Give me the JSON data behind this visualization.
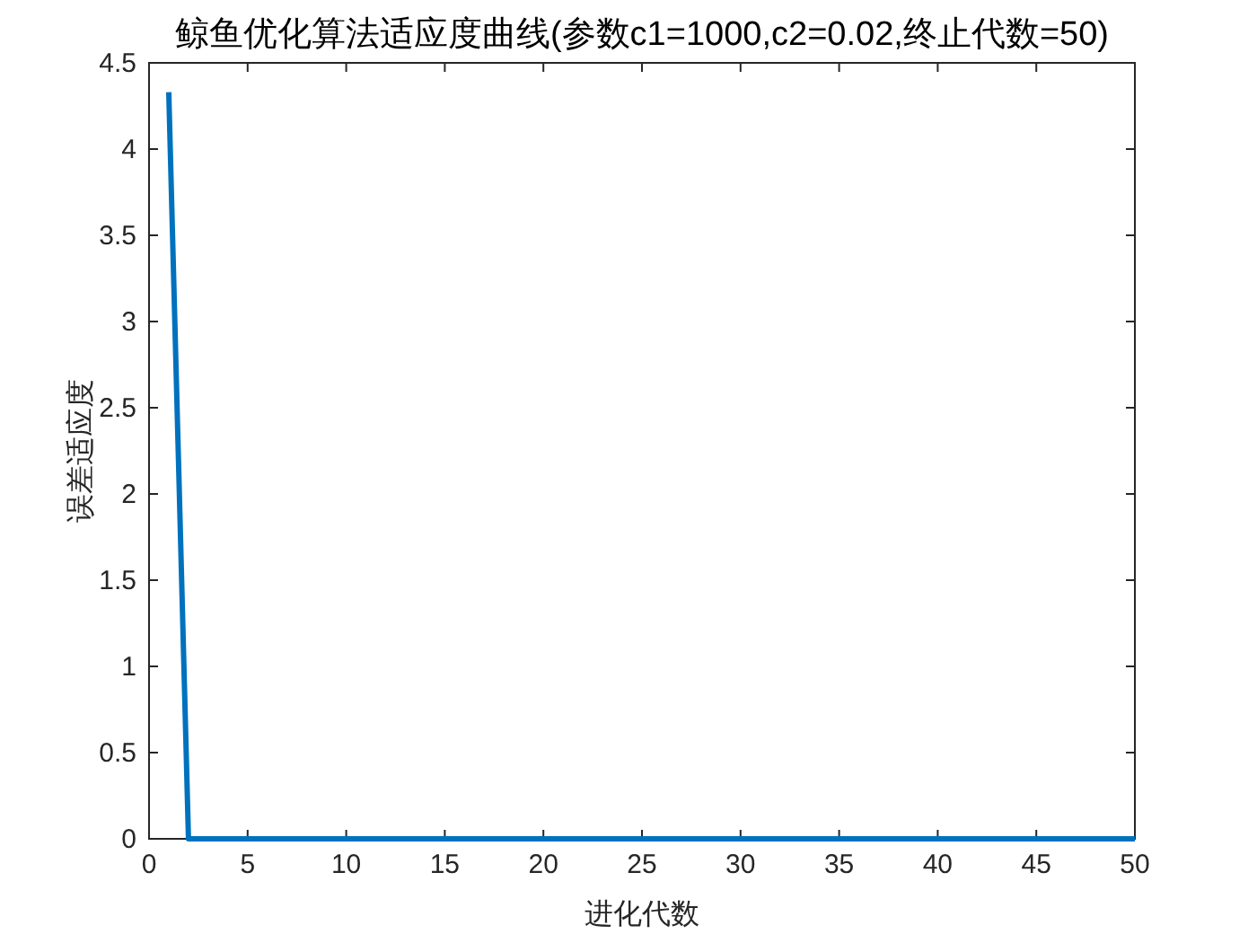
{
  "chart_data": {
    "type": "line",
    "title": "鲸鱼优化算法适应度曲线(参数c1=1000,c2=0.02,终止代数=50)",
    "xlabel": "进化代数",
    "ylabel": "误差适应度",
    "x": [
      1,
      2,
      3,
      4,
      5,
      6,
      7,
      8,
      9,
      10,
      11,
      12,
      13,
      14,
      15,
      16,
      17,
      18,
      19,
      20,
      21,
      22,
      23,
      24,
      25,
      26,
      27,
      28,
      29,
      30,
      31,
      32,
      33,
      34,
      35,
      36,
      37,
      38,
      39,
      40,
      41,
      42,
      43,
      44,
      45,
      46,
      47,
      48,
      49,
      50
    ],
    "series": [
      {
        "color": "#0072bd",
        "values": [
          4.33,
          0,
          0,
          0,
          0,
          0,
          0,
          0,
          0,
          0,
          0,
          0,
          0,
          0,
          0,
          0,
          0,
          0,
          0,
          0,
          0,
          0,
          0,
          0,
          0,
          0,
          0,
          0,
          0,
          0,
          0,
          0,
          0,
          0,
          0,
          0,
          0,
          0,
          0,
          0,
          0,
          0,
          0,
          0,
          0,
          0,
          0,
          0,
          0,
          0
        ]
      }
    ],
    "xlim": [
      0,
      50
    ],
    "xticks": [
      0,
      5,
      10,
      15,
      20,
      25,
      30,
      35,
      40,
      45,
      50
    ],
    "ylim": [
      0,
      4.5
    ],
    "yticks": [
      0,
      0.5,
      1,
      1.5,
      2,
      2.5,
      3,
      3.5,
      4,
      4.5
    ]
  }
}
